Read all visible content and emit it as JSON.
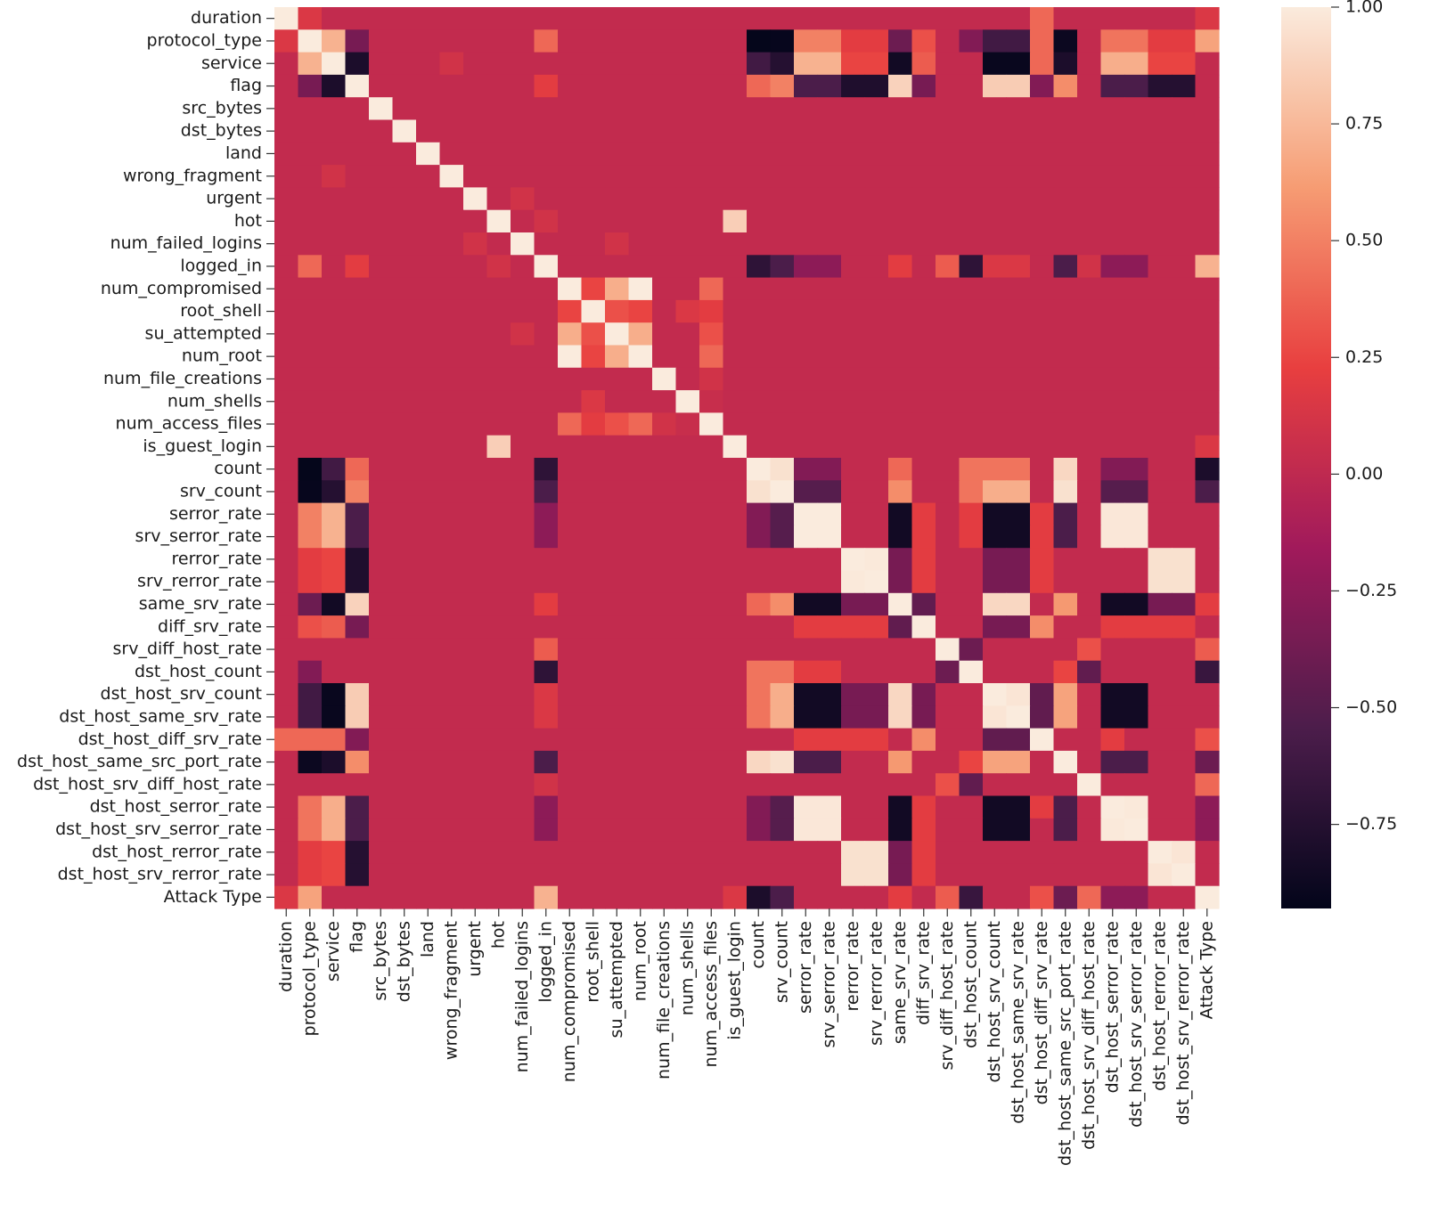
{
  "chart_data": {
    "type": "heatmap",
    "title": "",
    "xlabel": "",
    "ylabel": "",
    "labels": [
      "duration",
      "protocol_type",
      "service",
      "flag",
      "src_bytes",
      "dst_bytes",
      "land",
      "wrong_fragment",
      "urgent",
      "hot",
      "num_failed_logins",
      "logged_in",
      "num_compromised",
      "root_shell",
      "su_attempted",
      "num_root",
      "num_file_creations",
      "num_shells",
      "num_access_files",
      "is_guest_login",
      "count",
      "srv_count",
      "serror_rate",
      "srv_serror_rate",
      "rerror_rate",
      "srv_rerror_rate",
      "same_srv_rate",
      "diff_srv_rate",
      "srv_diff_host_rate",
      "dst_host_count",
      "dst_host_srv_count",
      "dst_host_same_srv_rate",
      "dst_host_diff_srv_rate",
      "dst_host_same_src_port_rate",
      "dst_host_srv_diff_host_rate",
      "dst_host_serror_rate",
      "dst_host_srv_serror_rate",
      "dst_host_rerror_rate",
      "dst_host_srv_rerror_rate",
      "Attack Type"
    ],
    "colorbar": {
      "min": -0.93,
      "max": 1.0,
      "ticks": [
        1.0,
        0.75,
        0.5,
        0.25,
        0.0,
        -0.25,
        -0.5,
        -0.75
      ],
      "tick_labels": [
        "1.00",
        "0.75",
        "0.50",
        "0.25",
        "0.00",
        "−0.25",
        "−0.50",
        "−0.75"
      ],
      "colors": [
        "#03051a",
        "#4c1d4b",
        "#a11a5b",
        "#e83f3f",
        "#f69c73",
        "#faebdd"
      ]
    },
    "notable_correlations": [
      {
        "a": "protocol_type",
        "b": "service",
        "value": 0.72
      },
      {
        "a": "protocol_type",
        "b": "count",
        "value": -0.92
      },
      {
        "a": "protocol_type",
        "b": "srv_count",
        "value": -0.91
      },
      {
        "a": "protocol_type",
        "b": "dst_host_same_src_port_rate",
        "value": -0.88
      },
      {
        "a": "protocol_type",
        "b": "serror_rate",
        "value": 0.5
      },
      {
        "a": "protocol_type",
        "b": "Attack Type",
        "value": 0.65
      },
      {
        "a": "service",
        "b": "flag",
        "value": -0.8
      },
      {
        "a": "service",
        "b": "serror_rate",
        "value": 0.72
      },
      {
        "a": "service",
        "b": "dst_host_srv_count",
        "value": -0.9
      },
      {
        "a": "flag",
        "b": "same_srv_rate",
        "value": 0.88
      },
      {
        "a": "flag",
        "b": "dst_host_srv_count",
        "value": 0.85
      },
      {
        "a": "flag",
        "b": "rerror_rate",
        "value": -0.78
      },
      {
        "a": "num_compromised",
        "b": "num_root",
        "value": 1.0
      },
      {
        "a": "num_compromised",
        "b": "su_attempted",
        "value": 0.7
      },
      {
        "a": "hot",
        "b": "is_guest_login",
        "value": 0.86
      },
      {
        "a": "logged_in",
        "b": "Attack Type",
        "value": 0.72
      },
      {
        "a": "count",
        "b": "srv_count",
        "value": 0.95
      },
      {
        "a": "serror_rate",
        "b": "srv_serror_rate",
        "value": 1.0
      },
      {
        "a": "serror_rate",
        "b": "dst_host_serror_rate",
        "value": 0.98
      },
      {
        "a": "rerror_rate",
        "b": "srv_rerror_rate",
        "value": 0.99
      },
      {
        "a": "rerror_rate",
        "b": "dst_host_rerror_rate",
        "value": 0.95
      },
      {
        "a": "dst_host_srv_count",
        "b": "dst_host_same_srv_rate",
        "value": 0.97
      },
      {
        "a": "same_srv_rate",
        "b": "serror_rate",
        "value": -0.85
      }
    ]
  }
}
